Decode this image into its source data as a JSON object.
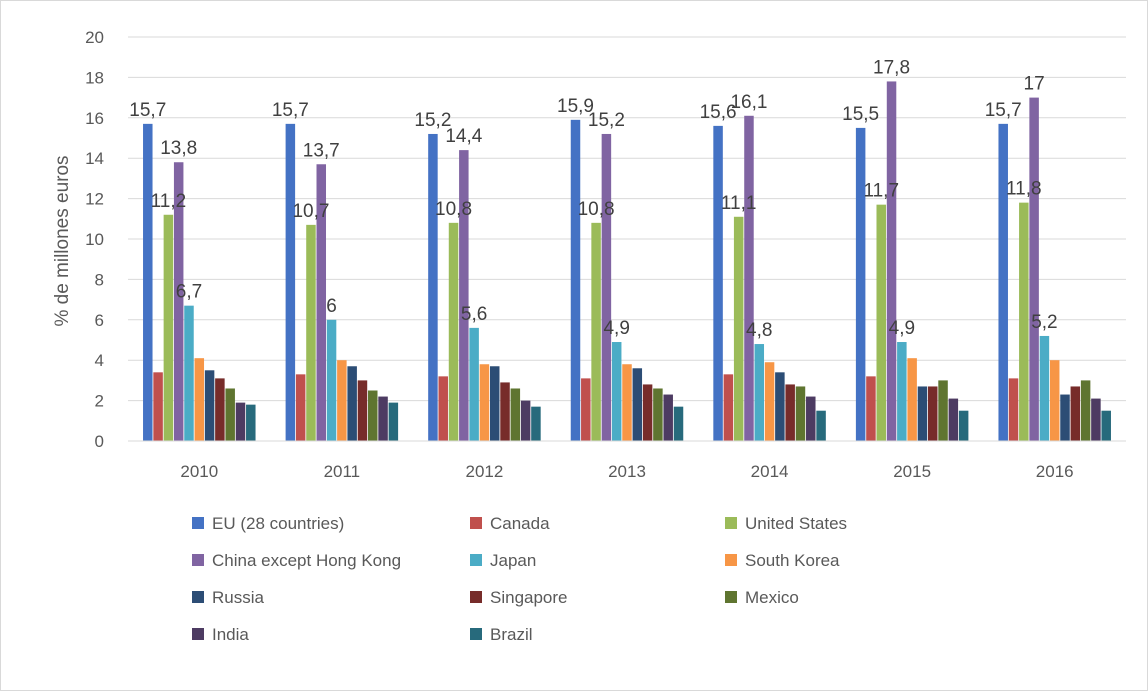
{
  "chart_data": {
    "type": "bar",
    "title": "",
    "xlabel": "",
    "ylabel": "% de millones euros",
    "ylim": [
      0,
      20
    ],
    "ytick_step": 2,
    "yticks": [
      "0",
      "2",
      "4",
      "6",
      "8",
      "10",
      "12",
      "14",
      "16",
      "18",
      "20"
    ],
    "grid": "horizontal",
    "legend_position": "bottom",
    "categories": [
      "2010",
      "2011",
      "2012",
      "2013",
      "2014",
      "2015",
      "2016"
    ],
    "series": [
      {
        "name": "EU (28 countries)",
        "color": "#4472C4",
        "values": [
          15.7,
          15.7,
          15.2,
          15.9,
          15.6,
          15.5,
          15.7
        ],
        "labels": [
          "15,7",
          "15,7",
          "15,2",
          "15,9",
          "15,6",
          "15,5",
          "15,7"
        ]
      },
      {
        "name": "Canada",
        "color": "#C0504D",
        "values": [
          3.4,
          3.3,
          3.2,
          3.1,
          3.3,
          3.2,
          3.1
        ]
      },
      {
        "name": "United States",
        "color": "#9BBB59",
        "values": [
          11.2,
          10.7,
          10.8,
          10.8,
          11.1,
          11.7,
          11.8
        ],
        "labels": [
          "11,2",
          "10,7",
          "10,8",
          "10,8",
          "11,1",
          "11,7",
          "11,8"
        ]
      },
      {
        "name": "China except Hong Kong",
        "color": "#8064A2",
        "values": [
          13.8,
          13.7,
          14.4,
          15.2,
          16.1,
          17.8,
          17.0
        ],
        "labels": [
          "13,8",
          "13,7",
          "14,4",
          "15,2",
          "16,1",
          "17,8",
          "17"
        ]
      },
      {
        "name": "Japan",
        "color": "#4BACC6",
        "values": [
          6.7,
          6.0,
          5.6,
          4.9,
          4.8,
          4.9,
          5.2
        ],
        "labels": [
          "6,7",
          "6",
          "5,6",
          "4,9",
          "4,8",
          "4,9",
          "5,2"
        ]
      },
      {
        "name": "South Korea",
        "color": "#F79646",
        "values": [
          4.1,
          4.0,
          3.8,
          3.8,
          3.9,
          4.1,
          4.0
        ]
      },
      {
        "name": "Russia",
        "color": "#2C4D75",
        "values": [
          3.5,
          3.7,
          3.7,
          3.6,
          3.4,
          2.7,
          2.3
        ]
      },
      {
        "name": "Singapore",
        "color": "#772C2A",
        "values": [
          3.1,
          3.0,
          2.9,
          2.8,
          2.8,
          2.7,
          2.7
        ]
      },
      {
        "name": "Mexico",
        "color": "#5F7530",
        "values": [
          2.6,
          2.5,
          2.6,
          2.6,
          2.7,
          3.0,
          3.0
        ]
      },
      {
        "name": "India",
        "color": "#4D3B62",
        "values": [
          1.9,
          2.2,
          2.0,
          2.3,
          2.2,
          2.1,
          2.1
        ]
      },
      {
        "name": "Brazil",
        "color": "#276A7C",
        "values": [
          1.8,
          1.9,
          1.7,
          1.7,
          1.5,
          1.5,
          1.5
        ]
      }
    ]
  }
}
